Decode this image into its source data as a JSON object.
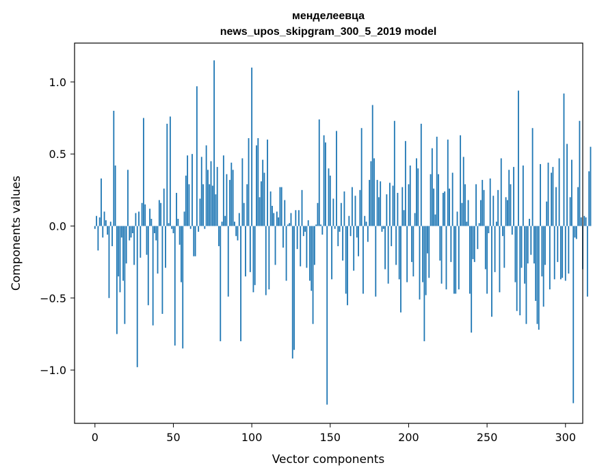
{
  "chart_data": {
    "type": "bar",
    "title_line1": "менделеевца",
    "title_line2": "news_upos_skipgram_300_5_2019 model",
    "xlabel": "Vector components",
    "ylabel": "Components values",
    "xlim": [
      -13,
      311
    ],
    "ylim": [
      -1.37,
      1.27
    ],
    "xticks": [
      0,
      50,
      100,
      150,
      200,
      250,
      300
    ],
    "xtick_labels": [
      "0",
      "50",
      "100",
      "150",
      "200",
      "250",
      "300"
    ],
    "yticks": [
      -1.0,
      -0.5,
      0.0,
      0.5,
      1.0
    ],
    "ytick_labels": [
      "−1.0",
      "−0.5",
      "0.0",
      "0.5",
      "1.0"
    ],
    "bar_color": "#1f77b4",
    "values": [
      -0.02,
      0.07,
      -0.17,
      0.06,
      0.33,
      -0.08,
      0.1,
      0.04,
      -0.06,
      -0.5,
      0.03,
      -0.14,
      0.8,
      0.42,
      -0.75,
      -0.35,
      -0.46,
      -0.08,
      -0.38,
      -0.68,
      -0.26,
      0.39,
      -0.1,
      -0.08,
      -0.05,
      -0.27,
      0.09,
      -0.98,
      0.1,
      -0.22,
      0.16,
      0.75,
      0.15,
      -0.2,
      -0.55,
      0.12,
      0.05,
      -0.69,
      -0.05,
      -0.1,
      -0.33,
      0.18,
      0.16,
      -0.61,
      0.26,
      -0.29,
      0.71,
      0.02,
      0.76,
      -0.02,
      -0.05,
      -0.83,
      0.23,
      0.05,
      -0.13,
      -0.39,
      -0.85,
      0.1,
      0.35,
      0.49,
      0.29,
      -0.02,
      0.5,
      -0.21,
      -0.21,
      0.97,
      -0.04,
      0.19,
      0.48,
      0.29,
      -0.02,
      0.56,
      0.39,
      0.29,
      0.45,
      0.28,
      1.15,
      0.22,
      0.41,
      -0.14,
      -0.8,
      0.03,
      0.49,
      0.07,
      0.36,
      -0.49,
      0.32,
      0.44,
      0.39,
      0.03,
      -0.07,
      -0.1,
      0.09,
      -0.8,
      0.47,
      0.16,
      -0.35,
      0.29,
      0.61,
      -0.32,
      1.1,
      -0.46,
      -0.41,
      0.56,
      0.61,
      0.2,
      0.31,
      0.46,
      0.37,
      -0.48,
      0.6,
      -0.44,
      0.24,
      0.14,
      0.09,
      -0.27,
      0.1,
      0.06,
      0.27,
      0.27,
      -0.15,
      0.18,
      -0.38,
      0.01,
      0.02,
      0.09,
      -0.92,
      -0.86,
      0.11,
      -0.16,
      0.11,
      -0.28,
      0.25,
      -0.07,
      -0.04,
      -0.29,
      0.04,
      -0.38,
      -0.45,
      -0.68,
      -0.27,
      0.01,
      0.16,
      0.74,
      0.01,
      -0.06,
      0.63,
      0.58,
      -1.24,
      0.4,
      0.35,
      -0.37,
      0.19,
      -0.02,
      0.66,
      -0.14,
      -0.04,
      0.16,
      -0.24,
      0.24,
      -0.47,
      -0.55,
      0.07,
      -0.07,
      0.27,
      -0.31,
      0.21,
      -0.08,
      -0.21,
      0.25,
      0.68,
      -0.47,
      0.07,
      0.03,
      -0.11,
      0.32,
      0.45,
      0.84,
      0.47,
      -0.49,
      0.32,
      0.2,
      0.31,
      -0.04,
      -0.02,
      -0.3,
      0.22,
      -0.4,
      0.3,
      -0.14,
      0.28,
      0.73,
      -0.27,
      0.23,
      -0.37,
      -0.6,
      0.27,
      0.11,
      0.59,
      -0.39,
      0.29,
      0.42,
      -0.25,
      -0.35,
      0.09,
      0.47,
      0.4,
      -0.51,
      0.71,
      -0.39,
      -0.8,
      -0.48,
      -0.19,
      -0.36,
      0.36,
      0.54,
      0.26,
      0.08,
      0.62,
      0.36,
      -0.24,
      -0.4,
      0.23,
      0.24,
      -0.44,
      0.6,
      0.26,
      -0.25,
      0.37,
      -0.47,
      -0.47,
      0.1,
      -0.44,
      0.63,
      0.16,
      0.48,
      0.29,
      0.03,
      0.18,
      -0.47,
      -0.74,
      -0.23,
      -0.25,
      0.29,
      -0.16,
      0.02,
      0.18,
      0.32,
      0.25,
      -0.3,
      -0.47,
      -0.05,
      0.33,
      -0.63,
      0.21,
      -0.32,
      0.03,
      0.25,
      -0.46,
      0.47,
      -0.07,
      -0.29,
      0.2,
      0.18,
      0.39,
      0.29,
      -0.06,
      0.41,
      -0.39,
      -0.59,
      0.94,
      -0.62,
      -0.29,
      0.42,
      -0.4,
      -0.68,
      -0.26,
      0.05,
      -0.2,
      0.68,
      -0.26,
      -0.52,
      -0.68,
      -0.72,
      0.43,
      -0.35,
      -0.56,
      -0.27,
      0.17,
      0.44,
      -0.44,
      0.37,
      0.41,
      -0.37,
      0.27,
      -0.25,
      0.47,
      -0.37,
      -0.36,
      0.92,
      -0.38,
      0.57,
      -0.33,
      0.2,
      0.46,
      -1.23,
      -0.08,
      -0.09,
      0.27,
      0.73,
      0.06,
      -0.3,
      0.07,
      0.06,
      -0.49,
      0.38,
      0.55
    ]
  }
}
